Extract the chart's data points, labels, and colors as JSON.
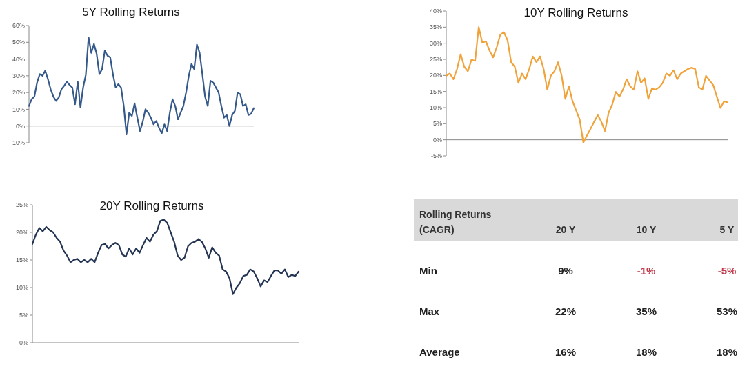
{
  "chart_data": [
    {
      "type": "line",
      "title": "5Y Rolling Returns",
      "tick_labels": "y",
      "categories": [
        null,
        null,
        null,
        null,
        null,
        null,
        null,
        null,
        null,
        null,
        null,
        null,
        null,
        null,
        null,
        null,
        null,
        null,
        null,
        null,
        null,
        null,
        null,
        null,
        null,
        null,
        null,
        null,
        null,
        null,
        null,
        null,
        null,
        null,
        null,
        null,
        null,
        null,
        null,
        null,
        null,
        null,
        null,
        null,
        null,
        null,
        null,
        null,
        null,
        null,
        null,
        null,
        null,
        null,
        null,
        null,
        null,
        null,
        null,
        null,
        null,
        null,
        null,
        null,
        null,
        null,
        null,
        null,
        null,
        null,
        null,
        null,
        null,
        null,
        null,
        null,
        null,
        null,
        null,
        null,
        null,
        null,
        null,
        null
      ],
      "series": [
        {
          "color": "#34598a",
          "values": [
            12,
            16,
            17.6,
            26,
            31,
            30,
            33,
            28,
            22,
            17.6,
            15,
            17,
            22,
            24,
            26.5,
            24.5,
            23,
            13,
            26.5,
            11,
            23,
            30.7,
            53,
            43.7,
            49,
            43,
            31,
            34,
            45,
            42,
            41,
            31,
            23,
            25,
            23,
            12,
            -5,
            8,
            6,
            13.5,
            5,
            -3,
            2.5,
            10,
            8,
            5,
            1,
            3,
            -1,
            -4.4,
            1,
            -3,
            8,
            16,
            12,
            4,
            8,
            12,
            20,
            30,
            37,
            34,
            48.6,
            43.7,
            31,
            17.6,
            12,
            27,
            26,
            23,
            20,
            12,
            5,
            6.6,
            0,
            6.6,
            9,
            20,
            19,
            12,
            13,
            6.6,
            7.3,
            10.7
          ]
        }
      ],
      "ylim": [
        -10,
        60
      ],
      "yticks": [
        {
          "value": -10,
          "label": "-10%"
        },
        {
          "value": 0,
          "label": "0%"
        },
        {
          "value": 10,
          "label": "10%"
        },
        {
          "value": 20,
          "label": "20%"
        },
        {
          "value": 30,
          "label": "30%"
        },
        {
          "value": 40,
          "label": "40%"
        },
        {
          "value": 50,
          "label": "50%"
        },
        {
          "value": 60,
          "label": "60%"
        }
      ]
    },
    {
      "type": "line",
      "title": "10Y Rolling Returns",
      "tick_labels": "y",
      "categories": [
        null,
        null,
        null,
        null,
        null,
        null,
        null,
        null,
        null,
        null,
        null,
        null,
        null,
        null,
        null,
        null,
        null,
        null,
        null,
        null,
        null,
        null,
        null,
        null,
        null,
        null,
        null,
        null,
        null,
        null,
        null,
        null,
        null,
        null,
        null,
        null,
        null,
        null,
        null,
        null,
        null,
        null,
        null,
        null,
        null,
        null,
        null,
        null,
        null,
        null,
        null,
        null,
        null,
        null,
        null,
        null,
        null,
        null,
        null,
        null,
        null,
        null,
        null,
        null,
        null,
        null,
        null,
        null,
        null,
        null,
        null,
        null,
        null,
        null,
        null,
        null,
        null,
        null,
        null
      ],
      "series": [
        {
          "color": "#f0a33a",
          "values": [
            19.9,
            20.6,
            18.8,
            22,
            26.6,
            22.7,
            21.3,
            24.9,
            24.5,
            35,
            30.2,
            30.6,
            27.7,
            25.6,
            28.8,
            32.7,
            33.4,
            30.9,
            24.1,
            22.7,
            17.7,
            20.6,
            18.8,
            22,
            25.9,
            24.1,
            25.9,
            22,
            15.6,
            19.9,
            21.3,
            24.1,
            19.9,
            12.7,
            16.6,
            12,
            9.1,
            6.3,
            -0.9,
            1.3,
            3.4,
            5.6,
            7.7,
            5.6,
            2.7,
            8.4,
            10.9,
            14.9,
            13.4,
            15.6,
            18.8,
            16.6,
            15.6,
            21.3,
            17.7,
            19.1,
            12.7,
            15.9,
            15.6,
            16.3,
            17.7,
            20.6,
            19.9,
            21.6,
            18.8,
            20.6,
            21.3,
            22,
            22.4,
            22,
            16.3,
            15.6,
            19.9,
            18.4,
            17,
            13.4,
            9.9,
            12,
            11.6
          ]
        }
      ],
      "ylim": [
        -5,
        40
      ],
      "yticks": [
        {
          "value": -5,
          "label": "-5%"
        },
        {
          "value": 0,
          "label": "0%"
        },
        {
          "value": 5,
          "label": "5%"
        },
        {
          "value": 10,
          "label": "10%"
        },
        {
          "value": 15,
          "label": "15%"
        },
        {
          "value": 20,
          "label": "20%"
        },
        {
          "value": 25,
          "label": "25%"
        },
        {
          "value": 30,
          "label": "30%"
        },
        {
          "value": 35,
          "label": "35%"
        },
        {
          "value": 40,
          "label": "40%"
        }
      ]
    },
    {
      "type": "line",
      "title": "20Y Rolling Returns",
      "tick_labels": "y",
      "categories": [
        null,
        null,
        null,
        null,
        null,
        null,
        null,
        null,
        null,
        null,
        null,
        null,
        null,
        null,
        null,
        null,
        null,
        null,
        null,
        null,
        null,
        null,
        null,
        null,
        null,
        null,
        null,
        null,
        null,
        null,
        null,
        null,
        null,
        null,
        null,
        null,
        null,
        null,
        null,
        null,
        null,
        null,
        null,
        null,
        null,
        null,
        null,
        null,
        null,
        null,
        null,
        null,
        null,
        null,
        null,
        null,
        null,
        null,
        null,
        null,
        null,
        null,
        null,
        null,
        null,
        null,
        null,
        null,
        null,
        null,
        null,
        null,
        null,
        null,
        null,
        null,
        null,
        null
      ],
      "series": [
        {
          "color": "#243554",
          "values": [
            17.9,
            19.6,
            20.8,
            20.2,
            21,
            20.4,
            20,
            19,
            18.3,
            16.7,
            15.8,
            14.6,
            15,
            15.2,
            14.6,
            15,
            14.6,
            15.2,
            14.6,
            16.3,
            17.7,
            17.9,
            17.1,
            17.7,
            18.1,
            17.7,
            16,
            15.6,
            17.1,
            16,
            17.1,
            16.3,
            17.7,
            19,
            18.3,
            19.6,
            20.2,
            22.1,
            22.3,
            21.7,
            20,
            18.3,
            15.8,
            15,
            15.4,
            17.5,
            18.1,
            18.3,
            18.8,
            18.3,
            17.1,
            15.4,
            17.3,
            16.3,
            15.8,
            13.3,
            12.9,
            11.7,
            8.8,
            10,
            10.8,
            12.1,
            12.3,
            13.3,
            12.9,
            11.7,
            10.2,
            11.3,
            11,
            12.1,
            13.1,
            13.1,
            12.5,
            13.3,
            11.9,
            12.3,
            12.1,
            12.9
          ]
        }
      ],
      "ylim": [
        0,
        25
      ],
      "yticks": [
        {
          "value": 0,
          "label": "0%"
        },
        {
          "value": 5,
          "label": "5%"
        },
        {
          "value": 10,
          "label": "10%"
        },
        {
          "value": 15,
          "label": "15%"
        },
        {
          "value": 20,
          "label": "20%"
        },
        {
          "value": 25,
          "label": "25%"
        }
      ]
    },
    {
      "type": "other",
      "title": "Rolling Returns (CAGR)",
      "categories": [
        "20 Y",
        "10 Y",
        "5 Y"
      ],
      "y_categories": [
        "Min",
        "Max",
        "Average"
      ],
      "cell_labels": [
        [
          "9%",
          "-1%",
          "-5%"
        ],
        [
          "22%",
          "35%",
          "53%"
        ],
        [
          "16%",
          "18%",
          "18%"
        ]
      ]
    }
  ]
}
